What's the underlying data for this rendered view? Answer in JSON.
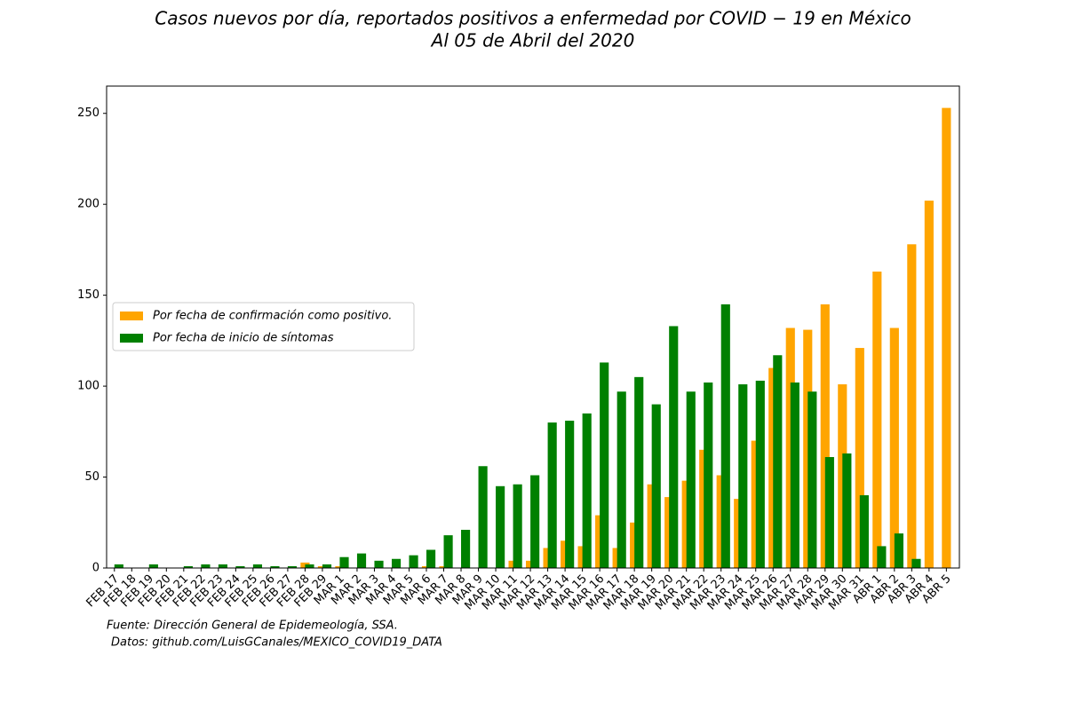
{
  "chart_data": {
    "type": "bar",
    "title": "Casos nuevos por día, reportados positivos a enfermedad por COVID − 19 en México",
    "subtitle": "Al 05 de Abril del 2020",
    "categories": [
      "FEB 17",
      "FEB 18",
      "FEB 19",
      "FEB 20",
      "FEB 21",
      "FEB 22",
      "FEB 23",
      "FEB 24",
      "FEB 25",
      "FEB 26",
      "FEB 27",
      "FEB 28",
      "FEB 29",
      "MAR 1",
      "MAR 2",
      "MAR 3",
      "MAR 4",
      "MAR 5",
      "MAR 6",
      "MAR 7",
      "MAR 8",
      "MAR 9",
      "MAR 10",
      "MAR 11",
      "MAR 12",
      "MAR 13",
      "MAR 14",
      "MAR 15",
      "MAR 16",
      "MAR 17",
      "MAR 18",
      "MAR 19",
      "MAR 20",
      "MAR 21",
      "MAR 22",
      "MAR 23",
      "MAR 24",
      "MAR 25",
      "MAR 26",
      "MAR 27",
      "MAR 28",
      "MAR 29",
      "MAR 30",
      "MAR 31",
      "ABR 1",
      "ABR 2",
      "ABR 3",
      "ABR 4",
      "ABR 5"
    ],
    "series": [
      {
        "name": "Por fecha de confirmación como positivo.",
        "color": "#ffa500",
        "values": [
          0,
          0,
          0,
          0,
          0,
          0,
          0,
          0,
          0,
          0,
          0,
          3,
          1,
          1,
          0,
          0,
          0,
          0,
          1,
          1,
          0,
          0,
          0,
          4,
          4,
          11,
          15,
          12,
          29,
          11,
          25,
          46,
          39,
          48,
          65,
          51,
          38,
          70,
          110,
          132,
          131,
          145,
          101,
          121,
          163,
          132,
          178,
          202,
          253
        ]
      },
      {
        "name": "Por fecha de inicio de síntomas",
        "color": "#008000",
        "values": [
          2,
          0,
          2,
          0,
          1,
          2,
          2,
          1,
          2,
          1,
          1,
          2,
          2,
          6,
          8,
          4,
          5,
          7,
          10,
          18,
          21,
          56,
          45,
          46,
          51,
          80,
          81,
          85,
          113,
          97,
          105,
          90,
          133,
          97,
          102,
          145,
          101,
          103,
          117,
          102,
          97,
          61,
          63,
          40,
          12,
          19,
          5,
          0,
          0
        ]
      }
    ],
    "ylim": [
      0,
      265
    ],
    "yticks": [
      0,
      50,
      100,
      150,
      200,
      250
    ],
    "legend": "center left",
    "notes": [
      "Fuente:  Dirección General de Epidemeología, SSA.",
      "Datos:  github.com/LuisGCanales/MEXICO_COVID19_DATA"
    ]
  }
}
